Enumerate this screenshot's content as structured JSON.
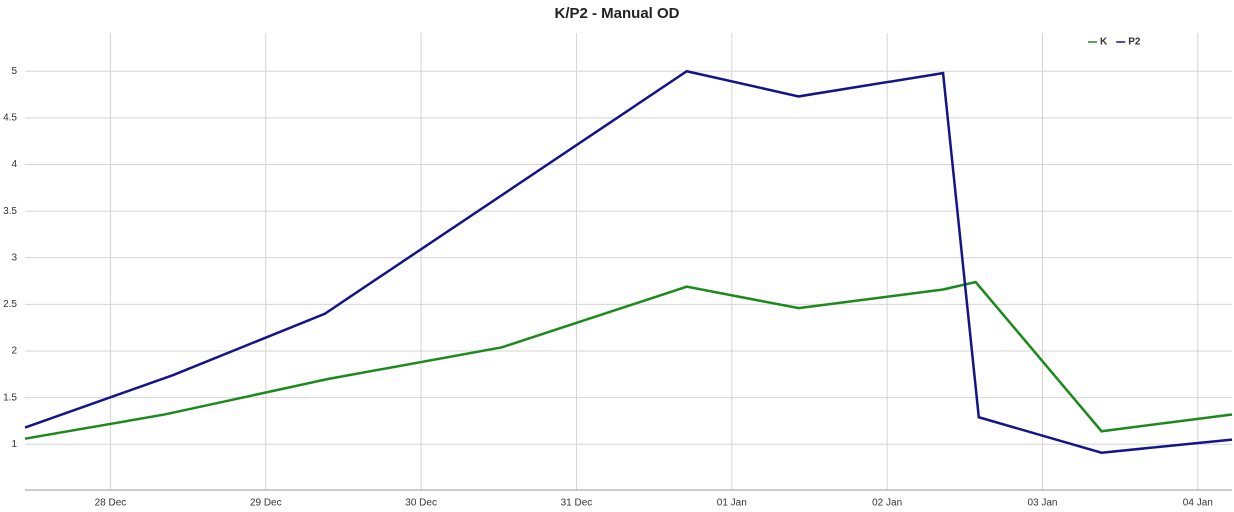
{
  "chart_data": {
    "type": "line",
    "title": "K/P2 - Manual OD",
    "xlim": [
      -0.55,
      7.22
    ],
    "xticks": [
      {
        "value": 0,
        "label": "28 Dec"
      },
      {
        "value": 1,
        "label": "29 Dec"
      },
      {
        "value": 2,
        "label": "30 Dec"
      },
      {
        "value": 3,
        "label": "31 Dec"
      },
      {
        "value": 4,
        "label": "01 Jan"
      },
      {
        "value": 5,
        "label": "02 Jan"
      },
      {
        "value": 6,
        "label": "03 Jan"
      },
      {
        "value": 7,
        "label": "04 Jan"
      }
    ],
    "ylim": [
      0.51,
      5.41
    ],
    "yticks": [
      1,
      1.5,
      2,
      2.5,
      3,
      3.5,
      4,
      4.5,
      5
    ],
    "grid": true,
    "legend": "top-right",
    "series": [
      {
        "name": "K",
        "color": "#1a8a1a",
        "x": [
          -0.55,
          0.35,
          1.4,
          2.52,
          3.71,
          4.43,
          5.36,
          5.57,
          6.38,
          7.22
        ],
        "values": [
          1.06,
          1.32,
          1.7,
          2.04,
          2.69,
          2.46,
          2.66,
          2.74,
          1.14,
          1.32
        ]
      },
      {
        "name": "P2",
        "color": "#14148a",
        "x": [
          -0.55,
          0.4,
          1.38,
          3.71,
          4.43,
          5.36,
          5.59,
          6.38,
          7.22
        ],
        "values": [
          1.18,
          1.74,
          2.4,
          5.0,
          4.73,
          4.98,
          1.29,
          0.91,
          1.05
        ]
      }
    ]
  }
}
